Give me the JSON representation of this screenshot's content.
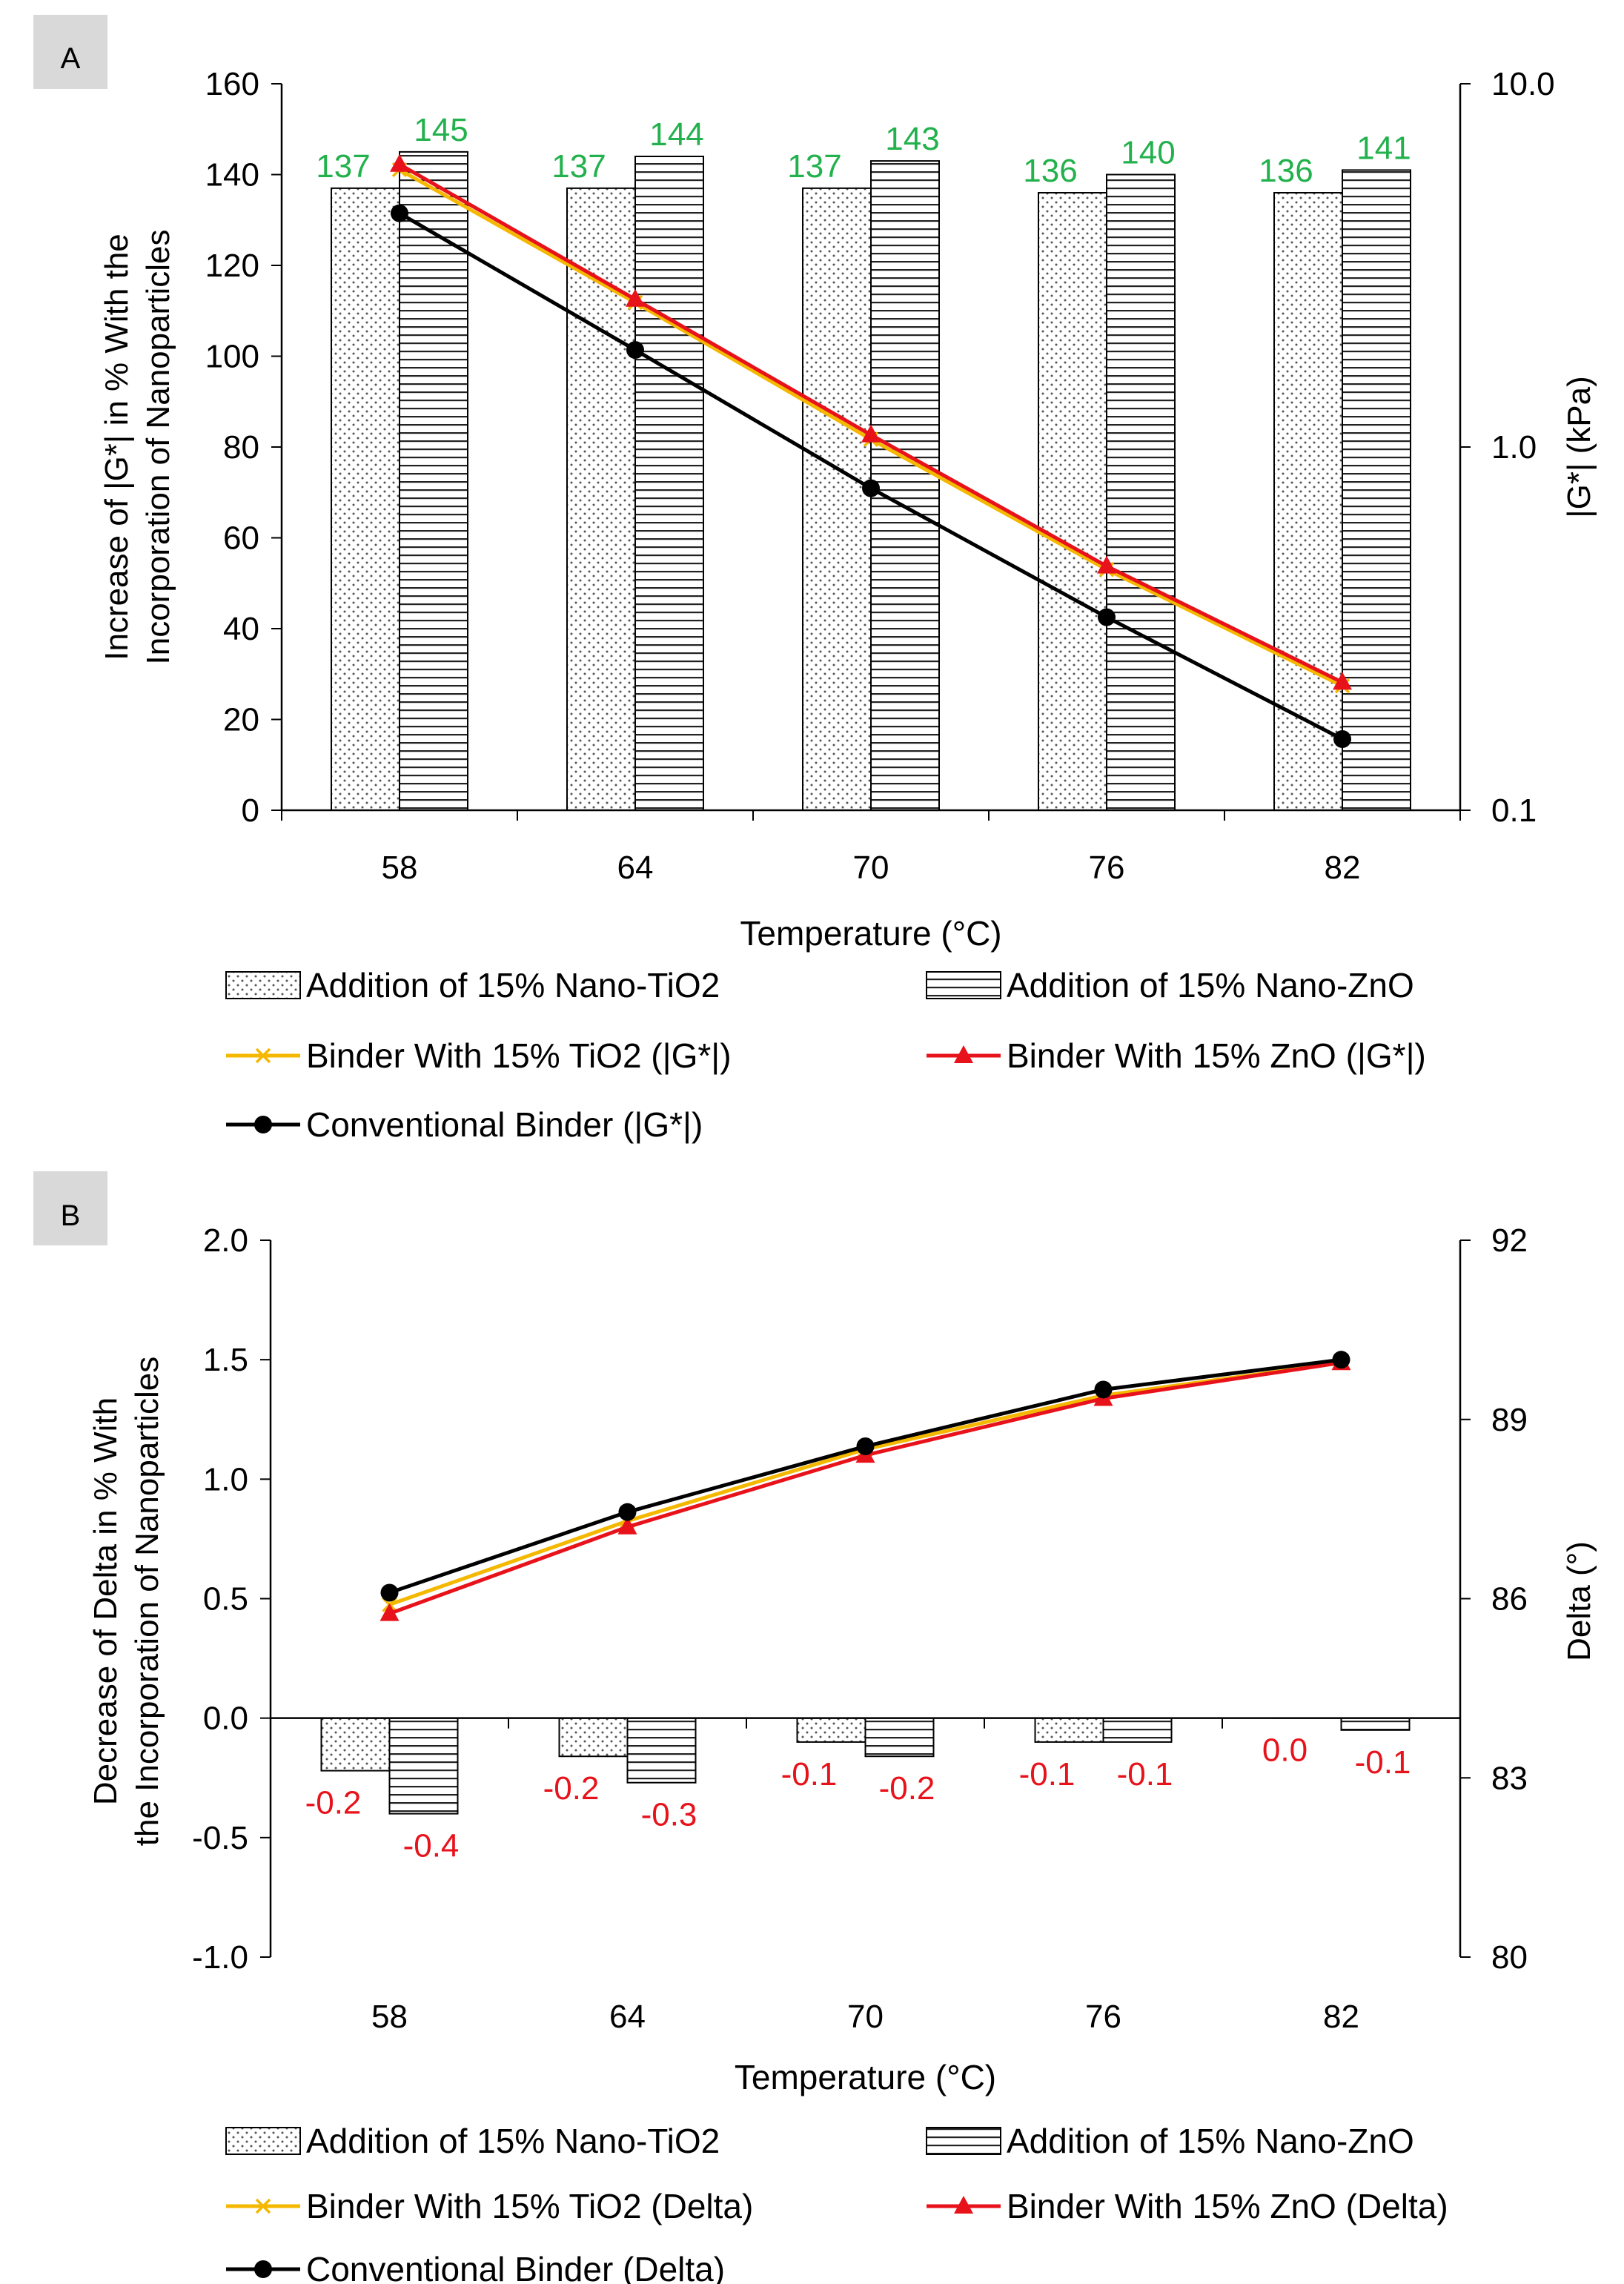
{
  "chart_data": [
    {
      "panel_label": "A",
      "type": "bar",
      "xlabel": "Temperature (°C)",
      "ylabel_left": "Increase of |G*| in % With the Incorporation of Nanoparticles",
      "ylabel_right": "|G*| (kPa)",
      "categories": [
        "58",
        "64",
        "70",
        "76",
        "82"
      ],
      "y_left": {
        "min": 0,
        "max": 160,
        "ticks": [
          "0",
          "20",
          "40",
          "60",
          "80",
          "100",
          "120",
          "140",
          "160"
        ]
      },
      "y_right": {
        "scale": "log",
        "min": 0.1,
        "max": 10,
        "ticks": [
          "0.1",
          "1.0",
          "10.0"
        ]
      },
      "bar_series": [
        {
          "name": "Addition of 15% Nano-TiO2",
          "axis": "left",
          "pattern": "dots",
          "values": [
            137,
            137,
            137,
            136,
            136
          ],
          "labels": [
            "137",
            "137",
            "137",
            "136",
            "136"
          ]
        },
        {
          "name": "Addition of 15% Nano-ZnO",
          "axis": "left",
          "pattern": "hlines",
          "values": [
            145,
            144,
            143,
            140,
            141
          ],
          "labels": [
            "145",
            "144",
            "143",
            "140",
            "141"
          ]
        }
      ],
      "line_series": [
        {
          "name": "Binder With 15% TiO2 (|G*|)",
          "axis": "right",
          "color": "#f5b800",
          "marker": "x",
          "values": [
            5.8,
            2.5,
            1.05,
            0.46,
            0.22
          ]
        },
        {
          "name": "Binder With 15% ZnO (|G*|)",
          "axis": "right",
          "color": "#e8121b",
          "marker": "triangle",
          "values": [
            6.0,
            2.55,
            1.08,
            0.47,
            0.225
          ]
        },
        {
          "name": "Conventional Binder (|G*|)",
          "axis": "right",
          "color": "#000000",
          "marker": "circle",
          "values": [
            4.4,
            1.85,
            0.77,
            0.34,
            0.157
          ]
        }
      ],
      "data_label_color": "#22b14c",
      "legend_position": "bottom"
    },
    {
      "panel_label": "B",
      "type": "bar",
      "xlabel": "Temperature (°C)",
      "ylabel_left": "Decrease of Delta in % With the Incorporation of Nanoparticles",
      "ylabel_right": "Delta (°)",
      "categories": [
        "58",
        "64",
        "70",
        "76",
        "82"
      ],
      "y_left": {
        "min": -1.0,
        "max": 2.0,
        "ticks": [
          "-1.0",
          "-0.5",
          "0.0",
          "0.5",
          "1.0",
          "1.5",
          "2.0"
        ]
      },
      "y_right": {
        "min": 80,
        "max": 92,
        "ticks": [
          "80",
          "83",
          "86",
          "89",
          "92"
        ]
      },
      "bar_series": [
        {
          "name": "Addition of 15% Nano-TiO2",
          "axis": "left",
          "pattern": "dots",
          "values": [
            -0.22,
            -0.16,
            -0.1,
            -0.1,
            0.0
          ],
          "labels": [
            "-0.2",
            "-0.2",
            "-0.1",
            "-0.1",
            "0.0"
          ]
        },
        {
          "name": "Addition of 15% Nano-ZnO",
          "axis": "left",
          "pattern": "hlines",
          "values": [
            -0.4,
            -0.27,
            -0.16,
            -0.1,
            -0.05
          ],
          "labels": [
            "-0.4",
            "-0.3",
            "-0.2",
            "-0.1",
            "-0.1"
          ]
        }
      ],
      "line_series": [
        {
          "name": "Binder With 15% TiO2 (Delta)",
          "axis": "right",
          "color": "#f5b800",
          "marker": "x",
          "values": [
            85.9,
            87.3,
            88.5,
            89.4,
            89.95
          ]
        },
        {
          "name": "Binder With 15% ZnO (Delta)",
          "axis": "right",
          "color": "#e8121b",
          "marker": "triangle",
          "values": [
            85.75,
            87.2,
            88.4,
            89.35,
            89.95
          ]
        },
        {
          "name": "Conventional Binder (Delta)",
          "axis": "right",
          "color": "#000000",
          "marker": "circle",
          "values": [
            86.1,
            87.45,
            88.55,
            89.5,
            90.0
          ]
        }
      ],
      "data_label_color": "#e8121b",
      "legend_position": "bottom"
    }
  ]
}
